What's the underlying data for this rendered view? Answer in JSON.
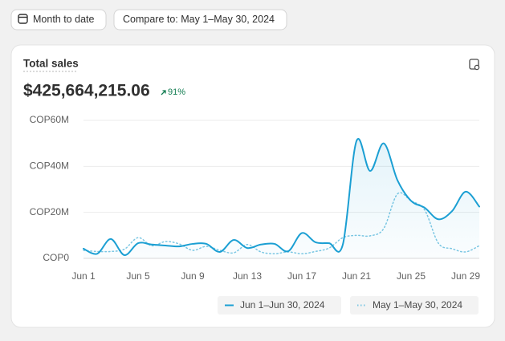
{
  "toolbar": {
    "date_range": "Month to date",
    "compare": "Compare to: May 1–May 30, 2024"
  },
  "chart_data": {
    "type": "line",
    "title": "Total sales",
    "total": "$425,664,215.06",
    "change": "91%",
    "categories": [
      "Jun 1",
      null,
      null,
      null,
      "Jun 5",
      null,
      null,
      null,
      "Jun 9",
      null,
      null,
      null,
      "Jun 13",
      null,
      null,
      null,
      "Jun 17",
      null,
      null,
      null,
      "Jun 21",
      null,
      null,
      null,
      "Jun 25",
      null,
      null,
      null,
      "Jun 29",
      null
    ],
    "series": [
      {
        "name": "Jun 1–Jun 30, 2024",
        "color": "#1b9fd3",
        "style": "solid",
        "area": true,
        "values": [
          4200000,
          2000000,
          8400000,
          1400000,
          6600000,
          6000000,
          5600000,
          5200000,
          6300000,
          6300000,
          2800000,
          8000000,
          4500000,
          6000000,
          6300000,
          3100000,
          11000000,
          7000000,
          6600000,
          6000000,
          51000000,
          38000000,
          50000000,
          34000000,
          25000000,
          22000000,
          17000000,
          20500000,
          29000000,
          22500000
        ]
      },
      {
        "name": "May 1–May 30, 2024",
        "color": "#7cc7e3",
        "style": "dotted",
        "area": false,
        "values": [
          3500000,
          3000000,
          3000000,
          4000000,
          9000000,
          5500000,
          7300000,
          6300000,
          3500000,
          5200000,
          3500000,
          2400000,
          6000000,
          2800000,
          2000000,
          2800000,
          2000000,
          3000000,
          4500000,
          9000000,
          10000000,
          9800000,
          13000000,
          28000000,
          25000000,
          21000000,
          6600000,
          4200000,
          2800000,
          5500000
        ]
      }
    ],
    "ylim": [
      0,
      60000000
    ],
    "yticks": [
      {
        "value": 0,
        "label": "COP0"
      },
      {
        "value": 20000000,
        "label": "COP20M"
      },
      {
        "value": 40000000,
        "label": "COP40M"
      },
      {
        "value": 60000000,
        "label": "COP60M"
      }
    ],
    "grid": true
  }
}
